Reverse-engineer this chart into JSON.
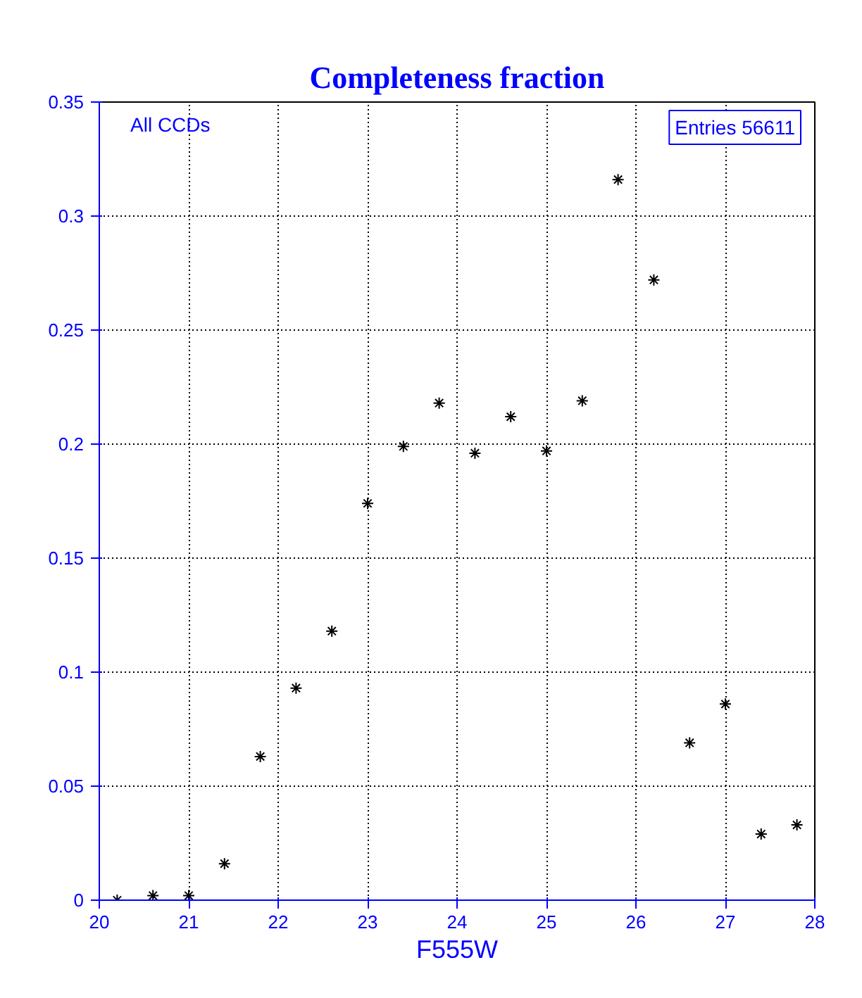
{
  "chart_data": {
    "type": "scatter",
    "title": "Completeness fraction",
    "xlabel": "F555W",
    "x": [
      20.2,
      20.6,
      21.0,
      21.4,
      21.8,
      22.2,
      22.6,
      23.0,
      23.4,
      23.8,
      24.2,
      24.6,
      25.0,
      25.4,
      25.8,
      26.2,
      26.6,
      27.0,
      27.4,
      27.8
    ],
    "values": [
      0,
      0.002,
      0.002,
      0.016,
      0.063,
      0.093,
      0.118,
      0.174,
      0.199,
      0.218,
      0.196,
      0.212,
      0.197,
      0.219,
      0.316,
      0.272,
      0.069,
      0.086,
      0.029,
      0.033
    ],
    "color": "#000000",
    "marker": "cross",
    "xlim": [
      20,
      28
    ],
    "xticks": [
      20,
      21,
      22,
      23,
      24,
      25,
      26,
      27,
      28
    ],
    "ylim": [
      0,
      0.35
    ],
    "yticks": [
      0,
      0.05,
      0.1,
      0.15,
      0.2,
      0.25,
      0.3,
      0.35
    ],
    "grid": true,
    "annotations": [
      "All CCDs",
      "Entries 56611"
    ]
  }
}
